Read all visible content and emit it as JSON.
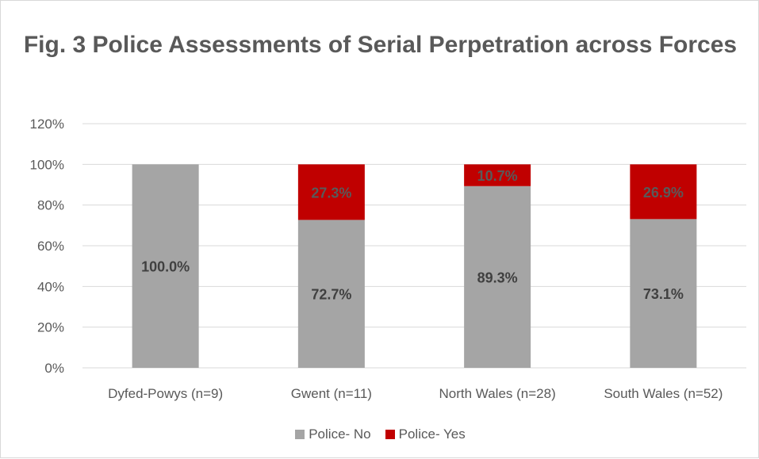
{
  "chart_data": {
    "type": "bar",
    "stacked": true,
    "title": "Fig. 3 Police Assessments of Serial Perpetration across Forces",
    "categories": [
      "Dyfed-Powys (n=9)",
      "Gwent (n=11)",
      "North Wales (n=28)",
      "South Wales (n=52)"
    ],
    "series": [
      {
        "name": "Police- No",
        "color": "#a5a5a5",
        "values": [
          100.0,
          72.7,
          89.3,
          73.1
        ],
        "labels": [
          "100.0%",
          "72.7%",
          "89.3%",
          "73.1%"
        ],
        "label_color": "#404040"
      },
      {
        "name": "Police- Yes",
        "color": "#c00000",
        "values": [
          0,
          27.3,
          10.7,
          26.9
        ],
        "labels": [
          "",
          "27.3%",
          "10.7%",
          "26.9%"
        ],
        "label_color": "#595959"
      }
    ],
    "ylim": [
      0,
      120
    ],
    "yticks": [
      "0%",
      "20%",
      "40%",
      "60%",
      "80%",
      "100%",
      "120%"
    ],
    "grid": true,
    "legend_position": "bottom"
  }
}
